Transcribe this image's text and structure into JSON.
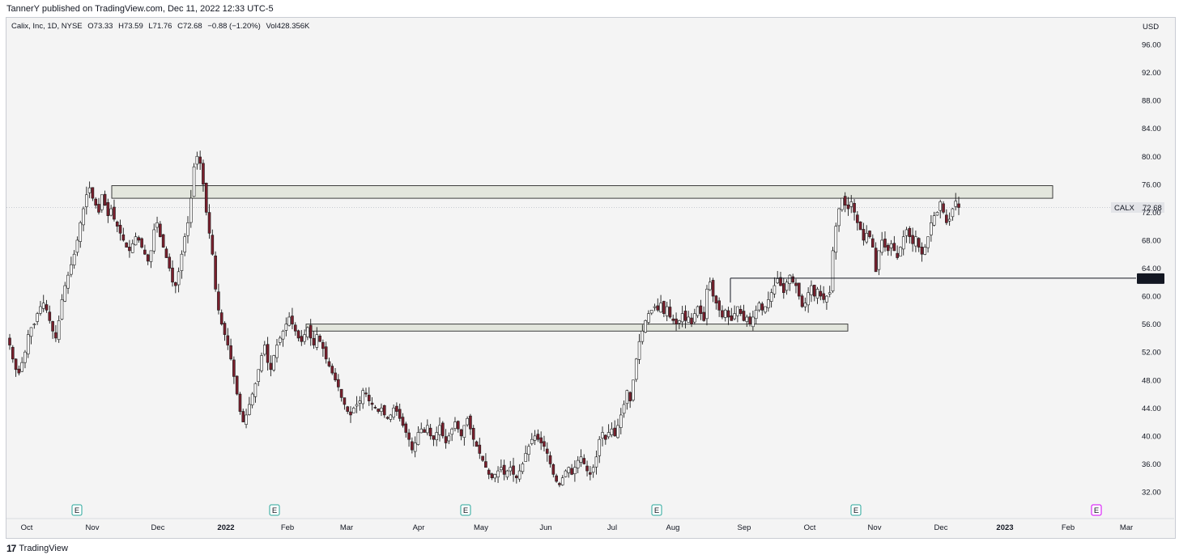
{
  "header": {
    "published": "TannerY published on TradingView.com, Dec 11, 2022 12:33 UTC-5"
  },
  "legend": {
    "symbol": "Calix, Inc, 1D, NYSE",
    "open": "O73.33",
    "high": "H73.59",
    "low": "L71.76",
    "close": "C72.68",
    "change": "−0.88 (−1.20%)",
    "volume": "Vol428.356K"
  },
  "footer": {
    "brand": "TradingView"
  },
  "colors": {
    "up": "#ffffff",
    "down": "#7a1f2d",
    "wick": "#1b1b1b",
    "zone": "#dde2d6",
    "zone_border": "#2a2a2a"
  },
  "chart_data": {
    "type": "candlestick",
    "currency_label": "USD",
    "ylim": [
      30,
      99
    ],
    "y_ticks": [
      "96.00",
      "92.00",
      "88.00",
      "84.00",
      "80.00",
      "76.00",
      "72.00",
      "68.00",
      "64.00",
      "60.00",
      "56.00",
      "52.00",
      "48.00",
      "44.00",
      "40.00",
      "36.00",
      "32.00"
    ],
    "x_ticks": [
      "Oct",
      "Nov",
      "Dec",
      "2022",
      "Feb",
      "Mar",
      "Apr",
      "May",
      "Jun",
      "Jul",
      "Aug",
      "Sep",
      "Oct",
      "Nov",
      "Dec",
      "2023",
      "Feb",
      "Mar"
    ],
    "current_price": {
      "symbol": "CALX",
      "value": "72.68"
    },
    "level_label": "62.57",
    "earnings_marker": "E",
    "close_series": [
      53.0,
      51.0,
      49.5,
      49.0,
      50.5,
      52.0,
      54.5,
      55.5,
      56.0,
      57.5,
      58.5,
      59.0,
      58.0,
      56.5,
      55.0,
      54.0,
      56.5,
      59.5,
      61.5,
      63.0,
      64.5,
      66.0,
      68.0,
      70.5,
      72.5,
      74.5,
      75.5,
      74.0,
      73.0,
      72.0,
      74.5,
      73.0,
      71.5,
      72.5,
      71.0,
      70.0,
      69.0,
      68.0,
      67.0,
      66.5,
      67.5,
      68.5,
      68.0,
      67.0,
      66.0,
      65.0,
      66.5,
      69.5,
      70.5,
      68.5,
      67.0,
      65.5,
      64.0,
      62.0,
      61.5,
      63.5,
      66.0,
      68.5,
      70.5,
      74.0,
      78.5,
      80.0,
      79.0,
      76.0,
      72.0,
      69.0,
      66.0,
      61.0,
      58.0,
      56.0,
      54.5,
      53.0,
      51.0,
      48.5,
      46.0,
      43.5,
      42.0,
      43.0,
      44.5,
      46.0,
      47.5,
      49.5,
      51.5,
      53.0,
      50.5,
      49.5,
      51.5,
      53.0,
      54.0,
      55.0,
      56.0,
      57.0,
      56.0,
      55.0,
      54.0,
      53.5,
      54.5,
      55.5,
      54.0,
      53.0,
      54.5,
      53.5,
      52.5,
      51.0,
      50.0,
      49.0,
      48.0,
      47.0,
      45.5,
      44.5,
      43.5,
      43.0,
      44.0,
      44.5,
      45.0,
      46.5,
      46.0,
      45.0,
      44.5,
      44.0,
      43.5,
      44.0,
      43.0,
      42.5,
      43.0,
      44.0,
      43.5,
      42.5,
      41.5,
      40.5,
      39.5,
      38.0,
      39.0,
      40.5,
      41.0,
      40.5,
      41.5,
      40.0,
      39.5,
      40.5,
      41.5,
      40.0,
      39.0,
      40.0,
      41.0,
      42.0,
      41.0,
      40.0,
      41.5,
      42.5,
      41.0,
      39.5,
      38.5,
      37.5,
      36.5,
      35.5,
      34.5,
      34.0,
      34.5,
      35.0,
      35.5,
      34.5,
      35.0,
      35.5,
      34.5,
      34.0,
      35.0,
      36.0,
      37.5,
      38.5,
      39.5,
      40.0,
      39.5,
      39.0,
      38.5,
      37.5,
      36.0,
      34.5,
      33.5,
      33.0,
      34.0,
      35.0,
      35.5,
      34.5,
      35.5,
      36.5,
      37.0,
      36.0,
      35.0,
      34.5,
      35.5,
      37.0,
      39.5,
      40.5,
      39.5,
      40.5,
      41.0,
      40.0,
      41.5,
      43.0,
      44.5,
      46.5,
      45.0,
      48.0,
      51.0,
      53.5,
      55.0,
      56.5,
      57.5,
      58.0,
      58.5,
      58.0,
      59.0,
      57.5,
      58.5,
      57.0,
      56.5,
      56.0,
      56.5,
      57.5,
      56.5,
      57.0,
      56.0,
      57.5,
      58.5,
      57.5,
      56.5,
      61.0,
      62.0,
      60.0,
      59.0,
      58.0,
      57.0,
      58.0,
      57.0,
      56.5,
      57.5,
      58.5,
      57.5,
      56.5,
      57.0,
      56.0,
      57.0,
      58.0,
      59.0,
      58.0,
      58.5,
      59.5,
      60.5,
      61.5,
      62.5,
      61.5,
      60.5,
      62.0,
      63.0,
      62.0,
      61.5,
      60.0,
      58.5,
      59.0,
      60.5,
      61.5,
      60.0,
      61.0,
      60.0,
      59.5,
      60.0,
      60.5,
      66.5,
      70.0,
      72.5,
      74.0,
      73.0,
      72.5,
      73.5,
      72.0,
      70.5,
      69.5,
      68.0,
      69.0,
      68.5,
      67.0,
      63.5,
      66.5,
      68.0,
      67.0,
      66.5,
      67.5,
      66.5,
      65.5,
      67.0,
      68.5,
      69.5,
      68.5,
      67.5,
      68.5,
      67.0,
      66.0,
      67.0,
      68.5,
      70.5,
      71.5,
      72.0,
      73.5,
      72.0,
      70.5,
      71.0,
      72.5,
      73.59,
      72.68
    ],
    "zones": [
      {
        "x_start": "2021-11-12",
        "x_end": "2023-01-20",
        "y_low": 74.0,
        "y_high": 75.8
      },
      {
        "x_start": "2022-02-16",
        "x_end": "2022-10-24",
        "y_low": 55.0,
        "y_high": 56.0
      }
    ],
    "horizontal_line": {
      "from": "2022-08-25",
      "value": 62.57
    },
    "earnings_dates": [
      "Nov",
      "Feb",
      "Apr",
      "Jul",
      "Oct"
    ],
    "next_event_month": "Feb"
  }
}
